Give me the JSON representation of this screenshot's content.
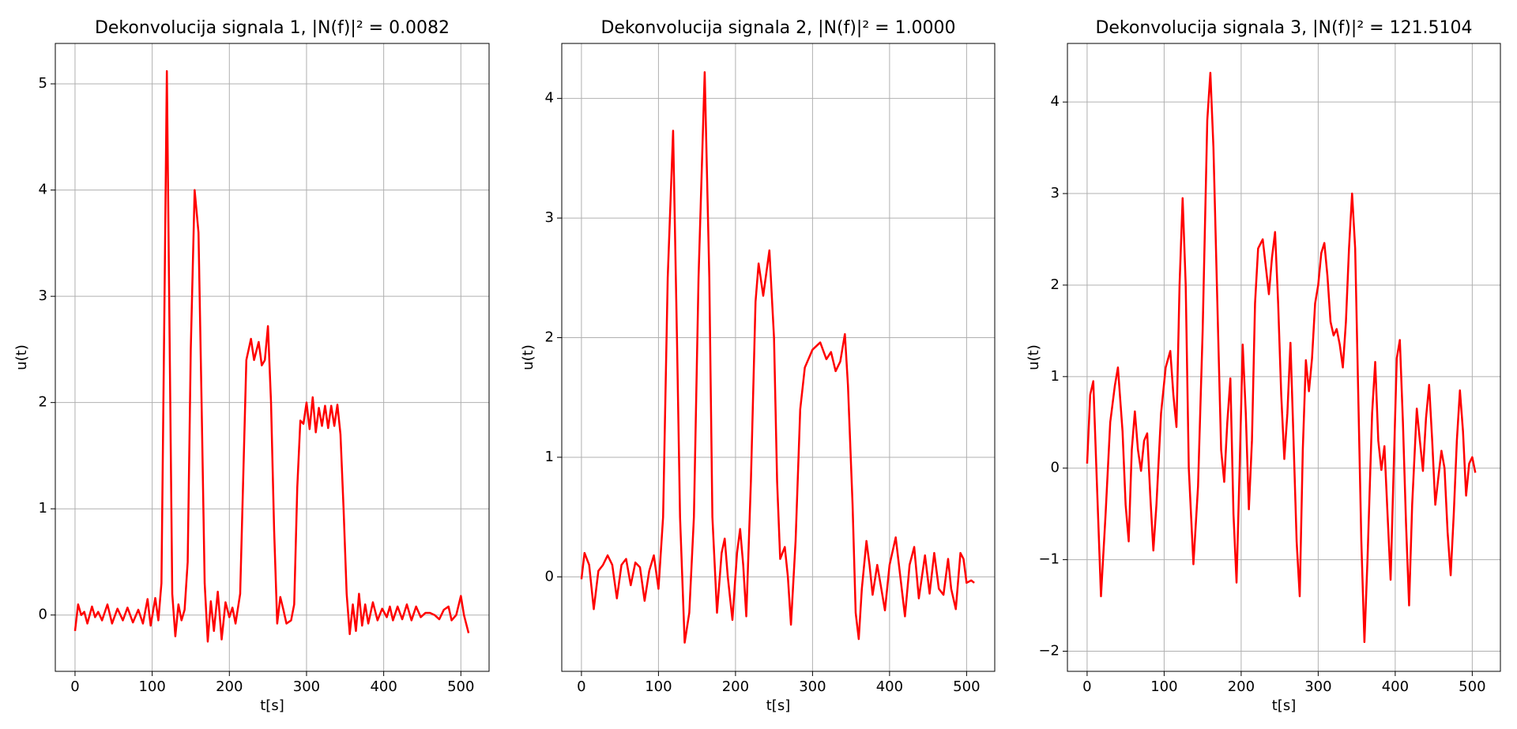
{
  "chart_data": [
    {
      "type": "line",
      "title": "Dekonvolucija signala 1, |N(f)|² = 0.0082",
      "x_label": "t[s]",
      "y_label": "u(t)",
      "grid": true,
      "xlim": [
        -25.55,
        536.55
      ],
      "ylim": [
        -0.53,
        5.38
      ],
      "xticks": [
        0,
        100,
        200,
        300,
        400,
        500
      ],
      "yticks": [
        0,
        1,
        2,
        3,
        4,
        5
      ],
      "x": [
        0,
        4,
        8,
        12,
        16,
        22,
        26,
        30,
        35,
        42,
        48,
        55,
        62,
        68,
        75,
        82,
        88,
        94,
        98,
        104,
        108,
        112,
        116,
        119,
        122,
        126,
        130,
        134,
        138,
        142,
        146,
        150,
        155,
        160,
        164,
        168,
        172,
        176,
        180,
        185,
        190,
        195,
        200,
        204,
        208,
        214,
        218,
        222,
        228,
        232,
        238,
        242,
        246,
        250,
        254,
        258,
        262,
        266,
        270,
        274,
        280,
        284,
        288,
        292,
        296,
        300,
        304,
        308,
        312,
        316,
        320,
        324,
        328,
        332,
        336,
        340,
        344,
        348,
        352,
        356,
        360,
        364,
        368,
        372,
        376,
        380,
        386,
        392,
        398,
        404,
        408,
        412,
        418,
        424,
        430,
        436,
        442,
        448,
        454,
        460,
        466,
        472,
        478,
        484,
        488,
        494,
        500,
        504,
        510
      ],
      "series": [
        {
          "color": "#ff0000",
          "values": [
            -0.15,
            0.1,
            0.0,
            0.03,
            -0.08,
            0.08,
            -0.02,
            0.03,
            -0.05,
            0.1,
            -0.08,
            0.06,
            -0.05,
            0.07,
            -0.07,
            0.05,
            -0.08,
            0.15,
            -0.1,
            0.16,
            -0.05,
            0.3,
            3.0,
            5.12,
            3.0,
            0.2,
            -0.2,
            0.1,
            -0.05,
            0.05,
            0.5,
            2.5,
            4.0,
            3.6,
            2.0,
            0.3,
            -0.25,
            0.13,
            -0.15,
            0.22,
            -0.23,
            0.12,
            -0.02,
            0.07,
            -0.08,
            0.2,
            1.3,
            2.4,
            2.6,
            2.4,
            2.57,
            2.35,
            2.4,
            2.72,
            2.0,
            0.8,
            -0.08,
            0.17,
            0.05,
            -0.08,
            -0.05,
            0.1,
            1.2,
            1.83,
            1.8,
            2.0,
            1.75,
            2.05,
            1.72,
            1.95,
            1.78,
            1.97,
            1.76,
            1.97,
            1.78,
            1.98,
            1.7,
            1.0,
            0.2,
            -0.18,
            0.1,
            -0.15,
            0.2,
            -0.1,
            0.1,
            -0.08,
            0.12,
            -0.05,
            0.06,
            -0.02,
            0.08,
            -0.05,
            0.08,
            -0.04,
            0.1,
            -0.05,
            0.08,
            -0.02,
            0.02,
            0.02,
            0.0,
            -0.04,
            0.05,
            0.08,
            -0.05,
            0.0,
            0.18,
            0.0,
            -0.17
          ]
        }
      ]
    },
    {
      "type": "line",
      "title": "Dekonvolucija signala 2, |N(f)|² = 1.0000",
      "x_label": "t[s]",
      "y_label": "u(t)",
      "grid": true,
      "xlim": [
        -25.55,
        536.55
      ],
      "ylim": [
        -0.79,
        4.46
      ],
      "xticks": [
        0,
        100,
        200,
        300,
        400,
        500
      ],
      "yticks": [
        0,
        1,
        2,
        3,
        4
      ],
      "x": [
        0,
        4,
        10,
        16,
        22,
        28,
        34,
        40,
        46,
        52,
        58,
        64,
        70,
        76,
        82,
        88,
        94,
        100,
        106,
        112,
        119,
        124,
        128,
        134,
        140,
        146,
        152,
        160,
        166,
        170,
        176,
        182,
        186,
        190,
        196,
        202,
        206,
        210,
        214,
        220,
        226,
        230,
        236,
        244,
        250,
        254,
        258,
        264,
        268,
        272,
        278,
        284,
        290,
        300,
        310,
        318,
        324,
        330,
        336,
        342,
        346,
        352,
        356,
        360,
        364,
        370,
        374,
        378,
        384,
        388,
        394,
        400,
        408,
        414,
        420,
        426,
        432,
        438,
        446,
        452,
        458,
        464,
        470,
        476,
        480,
        486,
        492,
        496,
        500,
        506,
        510
      ],
      "series": [
        {
          "color": "#ff0000",
          "values": [
            -0.02,
            0.2,
            0.1,
            -0.27,
            0.05,
            0.1,
            0.18,
            0.1,
            -0.18,
            0.1,
            0.15,
            -0.07,
            0.12,
            0.08,
            -0.2,
            0.05,
            0.18,
            -0.1,
            0.5,
            2.5,
            3.73,
            2.0,
            0.5,
            -0.55,
            -0.3,
            0.5,
            2.5,
            4.22,
            2.5,
            0.5,
            -0.3,
            0.2,
            0.32,
            0.0,
            -0.36,
            0.2,
            0.4,
            0.1,
            -0.33,
            0.8,
            2.3,
            2.62,
            2.35,
            2.73,
            2.0,
            0.8,
            0.15,
            0.25,
            0.0,
            -0.4,
            0.3,
            1.4,
            1.75,
            1.9,
            1.96,
            1.82,
            1.88,
            1.72,
            1.8,
            2.03,
            1.6,
            0.6,
            -0.3,
            -0.52,
            -0.1,
            0.3,
            0.1,
            -0.15,
            0.1,
            -0.05,
            -0.28,
            0.1,
            0.33,
            0.0,
            -0.33,
            0.1,
            0.25,
            -0.18,
            0.18,
            -0.14,
            0.2,
            -0.1,
            -0.15,
            0.15,
            -0.1,
            -0.27,
            0.2,
            0.15,
            -0.05,
            -0.03,
            -0.05
          ]
        }
      ]
    },
    {
      "type": "line",
      "title": "Dekonvolucija signala 3, |N(f)|² = 121.5104",
      "x_label": "t[s]",
      "y_label": "u(t)",
      "grid": true,
      "xlim": [
        -25.55,
        536.55
      ],
      "ylim": [
        -2.22,
        4.64
      ],
      "xticks": [
        0,
        100,
        200,
        300,
        400,
        500
      ],
      "yticks": [
        {
          "value": -2,
          "label": "−2"
        },
        {
          "value": -1,
          "label": "−1"
        },
        0,
        1,
        2,
        3,
        4
      ],
      "x": [
        0,
        4,
        8,
        12,
        18,
        24,
        30,
        36,
        40,
        46,
        50,
        54,
        58,
        62,
        66,
        70,
        74,
        78,
        82,
        86,
        90,
        96,
        102,
        108,
        112,
        116,
        120,
        124,
        128,
        132,
        138,
        144,
        150,
        156,
        160,
        164,
        170,
        174,
        178,
        182,
        186,
        190,
        194,
        198,
        202,
        206,
        210,
        214,
        218,
        222,
        228,
        232,
        236,
        240,
        244,
        248,
        252,
        256,
        260,
        264,
        268,
        272,
        276,
        280,
        284,
        288,
        292,
        296,
        300,
        304,
        308,
        312,
        316,
        320,
        324,
        328,
        332,
        336,
        340,
        344,
        348,
        352,
        356,
        360,
        364,
        370,
        374,
        378,
        382,
        386,
        390,
        394,
        398,
        402,
        406,
        410,
        414,
        418,
        422,
        428,
        432,
        436,
        440,
        444,
        448,
        452,
        456,
        460,
        464,
        468,
        472,
        476,
        480,
        484,
        488,
        492,
        496,
        500,
        504
      ],
      "series": [
        {
          "color": "#ff0000",
          "values": [
            0.05,
            0.8,
            0.95,
            0.0,
            -1.4,
            -0.5,
            0.5,
            0.9,
            1.1,
            0.4,
            -0.4,
            -0.8,
            0.2,
            0.62,
            0.2,
            -0.03,
            0.3,
            0.38,
            -0.3,
            -0.9,
            -0.4,
            0.6,
            1.1,
            1.28,
            0.8,
            0.45,
            2.0,
            2.95,
            2.0,
            0.0,
            -1.05,
            -0.2,
            1.5,
            3.8,
            4.32,
            3.5,
            1.5,
            0.2,
            -0.15,
            0.5,
            0.98,
            -0.5,
            -1.25,
            0.0,
            1.35,
            0.6,
            -0.45,
            0.3,
            1.8,
            2.4,
            2.5,
            2.2,
            1.9,
            2.3,
            2.58,
            1.8,
            0.8,
            0.1,
            0.6,
            1.37,
            0.3,
            -0.8,
            -1.4,
            0.2,
            1.18,
            0.84,
            1.2,
            1.8,
            2.0,
            2.35,
            2.46,
            2.1,
            1.6,
            1.45,
            1.52,
            1.35,
            1.1,
            1.6,
            2.4,
            3.0,
            2.4,
            0.8,
            -0.8,
            -1.9,
            -1.0,
            0.6,
            1.16,
            0.3,
            -0.02,
            0.24,
            -0.5,
            -1.22,
            0.0,
            1.2,
            1.4,
            0.5,
            -0.6,
            -1.5,
            -0.4,
            0.65,
            0.3,
            -0.03,
            0.55,
            0.91,
            0.3,
            -0.4,
            -0.1,
            0.19,
            0.0,
            -0.7,
            -1.17,
            -0.5,
            0.3,
            0.85,
            0.4,
            -0.3,
            0.05,
            0.12,
            -0.05
          ]
        }
      ]
    }
  ]
}
